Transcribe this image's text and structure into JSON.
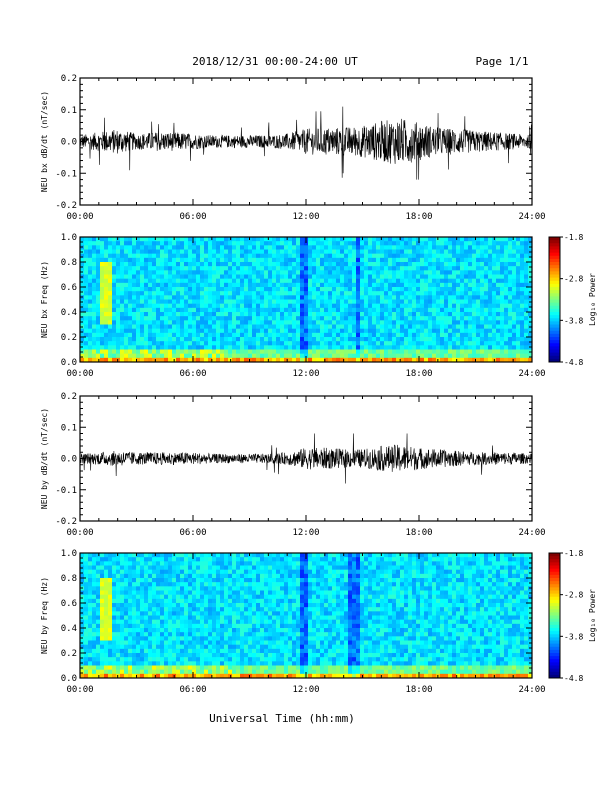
{
  "header": {
    "title": "2018/12/31  00:00-24:00 UT",
    "page": "Page 1/1"
  },
  "xlabel": "Universal Time (hh:mm)",
  "x_ticks": [
    "00:00",
    "06:00",
    "12:00",
    "18:00",
    "24:00"
  ],
  "colorbar": {
    "label": "Log₁₀ Power",
    "ticks": [
      "-1.8",
      "-2.8",
      "-3.8",
      "-4.8"
    ]
  },
  "chart_data": [
    {
      "type": "line",
      "ylabel": "NEU bx dB/dt (nT/sec)",
      "xlim": [
        0,
        24
      ],
      "ylim": [
        -0.2,
        0.2
      ],
      "y_ticks": [
        "0.2",
        "0.1",
        "0.0",
        "-0.1",
        "-0.2"
      ],
      "envelope": {
        "x": [
          0,
          1,
          2,
          3,
          4,
          5,
          6,
          7,
          8,
          9,
          10,
          11,
          12,
          13,
          14,
          15,
          16,
          17,
          18,
          19,
          20,
          21,
          22,
          23,
          24
        ],
        "amplitude": [
          0.02,
          0.03,
          0.04,
          0.025,
          0.03,
          0.03,
          0.025,
          0.02,
          0.02,
          0.02,
          0.02,
          0.025,
          0.04,
          0.045,
          0.045,
          0.05,
          0.065,
          0.075,
          0.06,
          0.045,
          0.04,
          0.035,
          0.03,
          0.025,
          0.02
        ]
      },
      "peak_max": 0.11,
      "peak_min": -0.12
    },
    {
      "type": "heatmap",
      "ylabel": "NEU bx Freq (Hz)",
      "xlim": [
        0,
        24
      ],
      "ylim": [
        0,
        1.0
      ],
      "y_ticks": [
        "1.0",
        "0.8",
        "0.6",
        "0.4",
        "0.2",
        "0.0"
      ],
      "zlim": [
        -4.8,
        -1.8
      ]
    },
    {
      "type": "line",
      "ylabel": "NEU by dB/dt (nT/sec)",
      "xlim": [
        0,
        24
      ],
      "ylim": [
        -0.2,
        0.2
      ],
      "y_ticks": [
        "0.2",
        "0.1",
        "0.0",
        "-0.1",
        "-0.2"
      ],
      "envelope": {
        "x": [
          0,
          1,
          2,
          3,
          4,
          5,
          6,
          7,
          8,
          9,
          10,
          11,
          12,
          13,
          14,
          15,
          16,
          17,
          18,
          19,
          20,
          21,
          22,
          23,
          24
        ],
        "amplitude": [
          0.015,
          0.02,
          0.025,
          0.02,
          0.02,
          0.02,
          0.02,
          0.015,
          0.015,
          0.015,
          0.015,
          0.02,
          0.035,
          0.035,
          0.03,
          0.03,
          0.04,
          0.045,
          0.035,
          0.03,
          0.025,
          0.02,
          0.02,
          0.02,
          0.015
        ]
      },
      "peak_max": 0.08,
      "peak_min": -0.08
    },
    {
      "type": "heatmap",
      "ylabel": "NEU by Freq (Hz)",
      "xlim": [
        0,
        24
      ],
      "ylim": [
        0,
        1.0
      ],
      "y_ticks": [
        "1.0",
        "0.8",
        "0.6",
        "0.4",
        "0.2",
        "0.0"
      ],
      "zlim": [
        -4.8,
        -1.8
      ]
    }
  ]
}
